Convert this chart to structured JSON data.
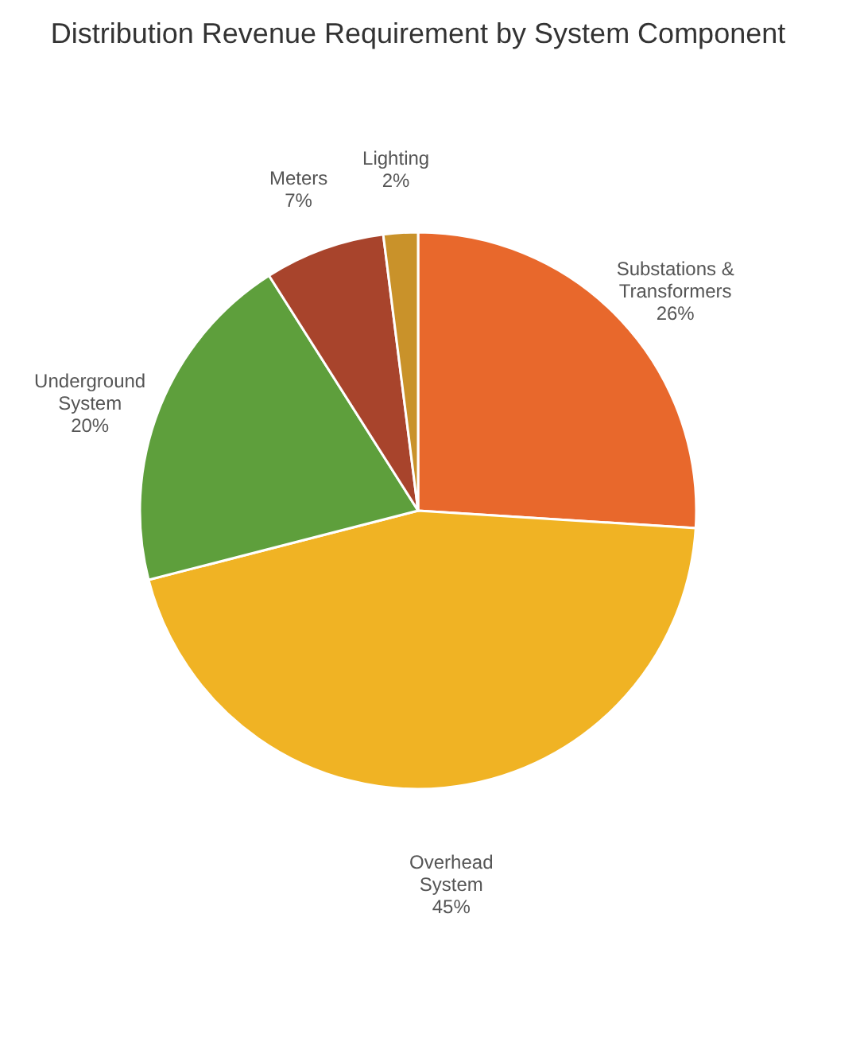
{
  "chart_data": {
    "type": "pie",
    "title": "Distribution Revenue Requirement by System Component",
    "categories": [
      "Substations & Transformers",
      "Overhead System",
      "Underground System",
      "Meters",
      "Lighting"
    ],
    "values": [
      26,
      45,
      20,
      7,
      2
    ],
    "value_labels": [
      "26%",
      "45%",
      "20%",
      "7%",
      "2%"
    ],
    "colors": [
      "#e8682c",
      "#f0b324",
      "#5e9f3c",
      "#a8442c",
      "#c9922a"
    ],
    "legend": false
  }
}
